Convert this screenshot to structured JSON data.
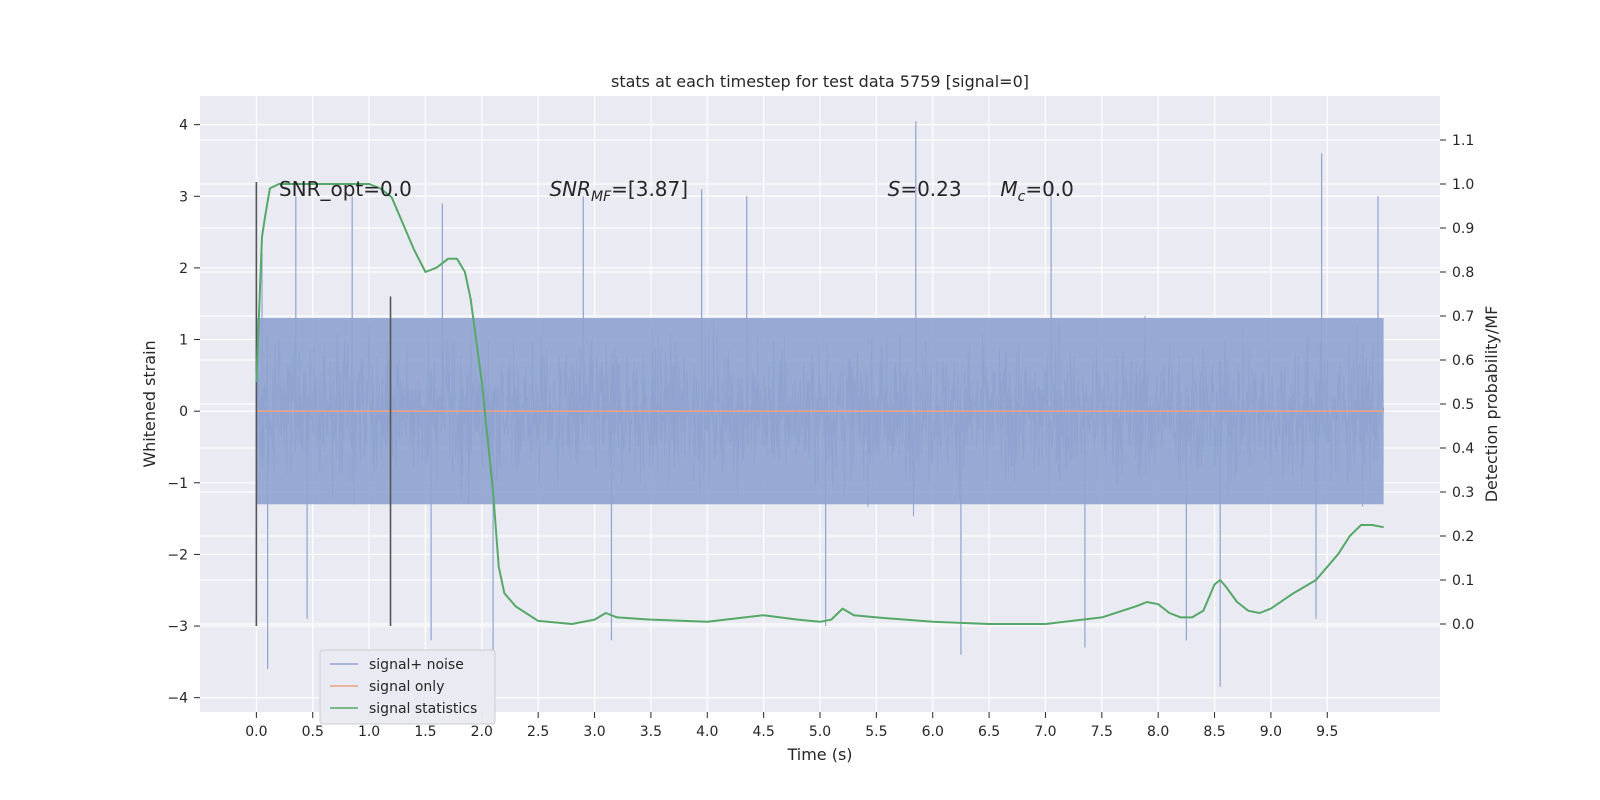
{
  "chart_data": {
    "type": "line",
    "title": "stats at each timestep for test data 5759 [signal=0]",
    "xlabel": "Time (s)",
    "ylabel": "Whitened strain",
    "y2label": "Detection probability/MF",
    "xlim": [
      -0.5,
      10.5
    ],
    "ylim": [
      -4.2,
      4.4
    ],
    "y2lim": [
      -0.2,
      1.2
    ],
    "xticks": [
      0.0,
      0.5,
      1.0,
      1.5,
      2.0,
      2.5,
      3.0,
      3.5,
      4.0,
      4.5,
      5.0,
      5.5,
      6.0,
      6.5,
      7.0,
      7.5,
      8.0,
      8.5,
      9.0,
      9.5
    ],
    "xtick_labels": [
      "0.0",
      "0.5",
      "1.0",
      "1.5",
      "2.0",
      "2.5",
      "3.0",
      "3.5",
      "4.0",
      "4.5",
      "5.0",
      "5.5",
      "6.0",
      "6.5",
      "7.0",
      "7.5",
      "8.0",
      "8.5",
      "9.0",
      "9.5"
    ],
    "yticks": [
      4,
      3,
      2,
      1,
      0,
      -1,
      -2,
      -3,
      -4
    ],
    "ytick_labels": [
      "4",
      "3",
      "2",
      "1",
      "0",
      "−1",
      "−2",
      "−3",
      "−4"
    ],
    "y2ticks": [
      1.1,
      1.0,
      0.9,
      0.8,
      0.7,
      0.6,
      0.5,
      0.4,
      0.3,
      0.2,
      0.1,
      0.0
    ],
    "y2tick_labels": [
      "1.1",
      "1.0",
      "0.9",
      "0.8",
      "0.7",
      "0.6",
      "0.5",
      "0.4",
      "0.3",
      "0.2",
      "0.1",
      "0.0"
    ],
    "grid": true,
    "legend_placement": "lower-left",
    "series": [
      {
        "name": "signal+ noise",
        "color": "#8fa3cf",
        "axis": "left",
        "style": "dense-noise",
        "x_range": [
          0.0,
          10.0
        ],
        "envelope": {
          "core": [
            -1.3,
            1.3
          ],
          "typical_peak": [
            -2.6,
            2.7
          ]
        },
        "spikes": [
          {
            "x": 0.05,
            "y": 2.2
          },
          {
            "x": 0.1,
            "y": -3.6
          },
          {
            "x": 0.35,
            "y": 3.0
          },
          {
            "x": 0.45,
            "y": -2.9
          },
          {
            "x": 0.85,
            "y": 3.0
          },
          {
            "x": 1.55,
            "y": -3.2
          },
          {
            "x": 1.65,
            "y": 2.9
          },
          {
            "x": 2.1,
            "y": -3.4
          },
          {
            "x": 2.9,
            "y": 3.0
          },
          {
            "x": 3.15,
            "y": -3.2
          },
          {
            "x": 3.95,
            "y": 3.1
          },
          {
            "x": 4.35,
            "y": 3.0
          },
          {
            "x": 5.05,
            "y": -3.0
          },
          {
            "x": 5.85,
            "y": 4.05
          },
          {
            "x": 6.25,
            "y": -3.4
          },
          {
            "x": 7.05,
            "y": 3.2
          },
          {
            "x": 7.35,
            "y": -3.3
          },
          {
            "x": 8.25,
            "y": -3.2
          },
          {
            "x": 8.55,
            "y": -3.85
          },
          {
            "x": 9.45,
            "y": 3.6
          },
          {
            "x": 9.4,
            "y": -2.9
          },
          {
            "x": 9.95,
            "y": 3.0
          }
        ]
      },
      {
        "name": "signal only",
        "color": "#e8a288",
        "axis": "left",
        "x": [
          0.0,
          10.0
        ],
        "y": [
          0.0,
          0.0
        ]
      },
      {
        "name": "signal statistics",
        "color": "#55a868",
        "axis": "right",
        "x": [
          0.0,
          0.05,
          0.08,
          0.12,
          0.2,
          0.3,
          0.5,
          0.8,
          1.0,
          1.1,
          1.2,
          1.3,
          1.4,
          1.5,
          1.6,
          1.7,
          1.78,
          1.85,
          1.9,
          2.0,
          2.1,
          2.15,
          2.2,
          2.3,
          2.5,
          2.8,
          3.0,
          3.1,
          3.2,
          3.5,
          4.0,
          4.5,
          4.8,
          5.0,
          5.1,
          5.2,
          5.3,
          5.5,
          6.0,
          6.5,
          7.0,
          7.5,
          7.8,
          7.9,
          8.0,
          8.1,
          8.2,
          8.3,
          8.4,
          8.5,
          8.55,
          8.6,
          8.7,
          8.8,
          8.9,
          9.0,
          9.2,
          9.4,
          9.5,
          9.6,
          9.7,
          9.8,
          9.9,
          10.0
        ],
        "y": [
          0.55,
          0.88,
          0.93,
          0.99,
          1.0,
          1.0,
          1.0,
          1.0,
          1.0,
          0.99,
          0.97,
          0.91,
          0.85,
          0.8,
          0.81,
          0.83,
          0.83,
          0.8,
          0.74,
          0.55,
          0.3,
          0.13,
          0.07,
          0.04,
          0.007,
          0.0,
          0.01,
          0.025,
          0.015,
          0.01,
          0.005,
          0.02,
          0.01,
          0.005,
          0.01,
          0.035,
          0.02,
          0.015,
          0.005,
          0.0,
          0.0,
          0.015,
          0.04,
          0.05,
          0.045,
          0.025,
          0.015,
          0.015,
          0.03,
          0.09,
          0.1,
          0.085,
          0.05,
          0.03,
          0.025,
          0.035,
          0.07,
          0.1,
          0.13,
          0.16,
          0.2,
          0.225,
          0.225,
          0.22
        ]
      }
    ],
    "vertical_markers": [
      {
        "x": 0.0,
        "y_from": -3.0,
        "y_to": 3.2,
        "color": "#555555"
      },
      {
        "x": 1.19,
        "y_from": -3.0,
        "y_to": 1.6,
        "color": "#555555"
      }
    ],
    "annotations": [
      {
        "text": "SNR_opt=0.0",
        "kind": "plain",
        "x": 0.2,
        "y": 3.1
      },
      {
        "text": "SNR",
        "sub": "MF",
        "tail": "=[3.87]",
        "kind": "math",
        "x": 2.6,
        "y": 3.1
      },
      {
        "text": "S",
        "tail": "=0.23",
        "kind": "math",
        "x": 5.6,
        "y": 3.1
      },
      {
        "text": "M",
        "sub": "c",
        "tail": "=0.0",
        "kind": "math",
        "x": 6.6,
        "y": 3.1
      }
    ]
  }
}
